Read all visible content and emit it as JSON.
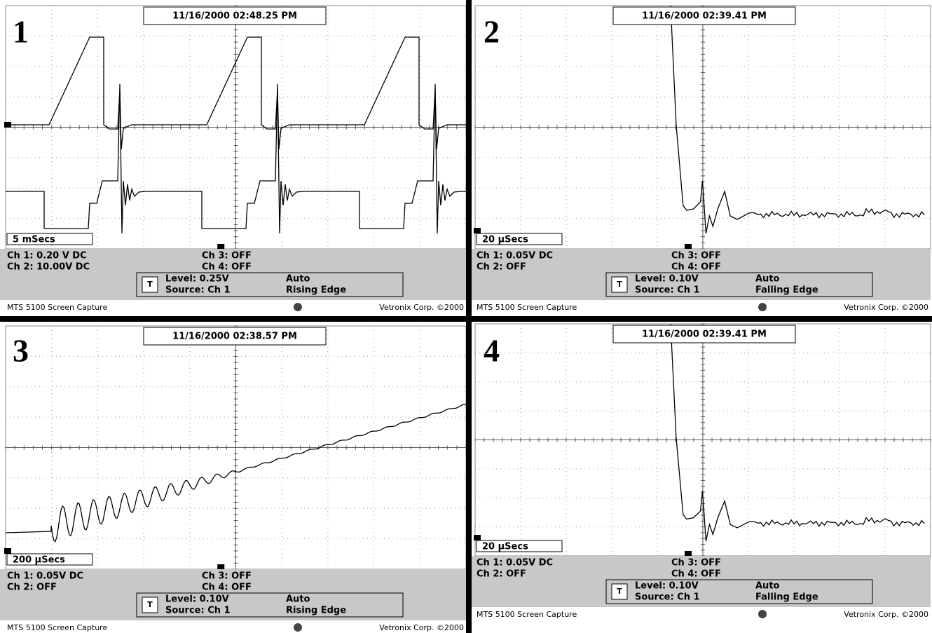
{
  "panels": [
    {
      "number": "1",
      "timestamp": "11/16/2000 02:48.25 PM",
      "timebase": "5 mSecs",
      "ch1": "Ch 1: 0.20 V DC",
      "ch2": "Ch 2: 10.00V  DC",
      "ch3": "Ch 3: OFF",
      "ch4": "Ch 4: OFF",
      "trigger_icon": "T",
      "level": "Level: 0.25V",
      "mode": "Auto",
      "source": "Source: Ch 1",
      "edge": "Rising Edge",
      "footer_left": "MTS 5100 Screen Capture",
      "footer_right": "Vetronix Corp. ©2000"
    },
    {
      "number": "2",
      "timestamp": "11/16/2000 02:39.41 PM",
      "timebase": "20 µSecs",
      "ch1": "Ch 1: 0.05V  DC",
      "ch2": "Ch 2: OFF",
      "ch3": "Ch 3: OFF",
      "ch4": "Ch 4: OFF",
      "trigger_icon": "T",
      "level": "Level: 0.10V",
      "mode": "Auto",
      "source": "Source: Ch 1",
      "edge": "Falling Edge",
      "footer_left": "MTS 5100 Screen Capture",
      "footer_right": "Vetronix Corp. ©2000"
    },
    {
      "number": "3",
      "timestamp": "11/16/2000 02:38.57 PM",
      "timebase": "200 µSecs",
      "ch1": "Ch 1: 0.05V  DC",
      "ch2": "Ch 2: OFF",
      "ch3": "Ch 3: OFF",
      "ch4": "Ch 4: OFF",
      "trigger_icon": "T",
      "level": "Level: 0.10V",
      "mode": "Auto",
      "source": "Source: Ch 1",
      "edge": "Rising Edge",
      "footer_left": "MTS 5100 Screen Capture",
      "footer_right": "Vetronix Corp. ©2000"
    },
    {
      "number": "4",
      "timestamp": "11/16/2000 02:39.41 PM",
      "timebase": "20 µSecs",
      "ch1": "Ch 1: 0.05V  DC",
      "ch2": "Ch 2: OFF",
      "ch3": "Ch 3: OFF",
      "ch4": "Ch 4: OFF",
      "trigger_icon": "T",
      "level": "Level: 0.10V",
      "mode": "Auto",
      "source": "Source: Ch 1",
      "edge": "Falling Edge",
      "footer_left": "MTS 5100 Screen Capture",
      "footer_right": "Vetronix Corp. ©2000"
    }
  ]
}
